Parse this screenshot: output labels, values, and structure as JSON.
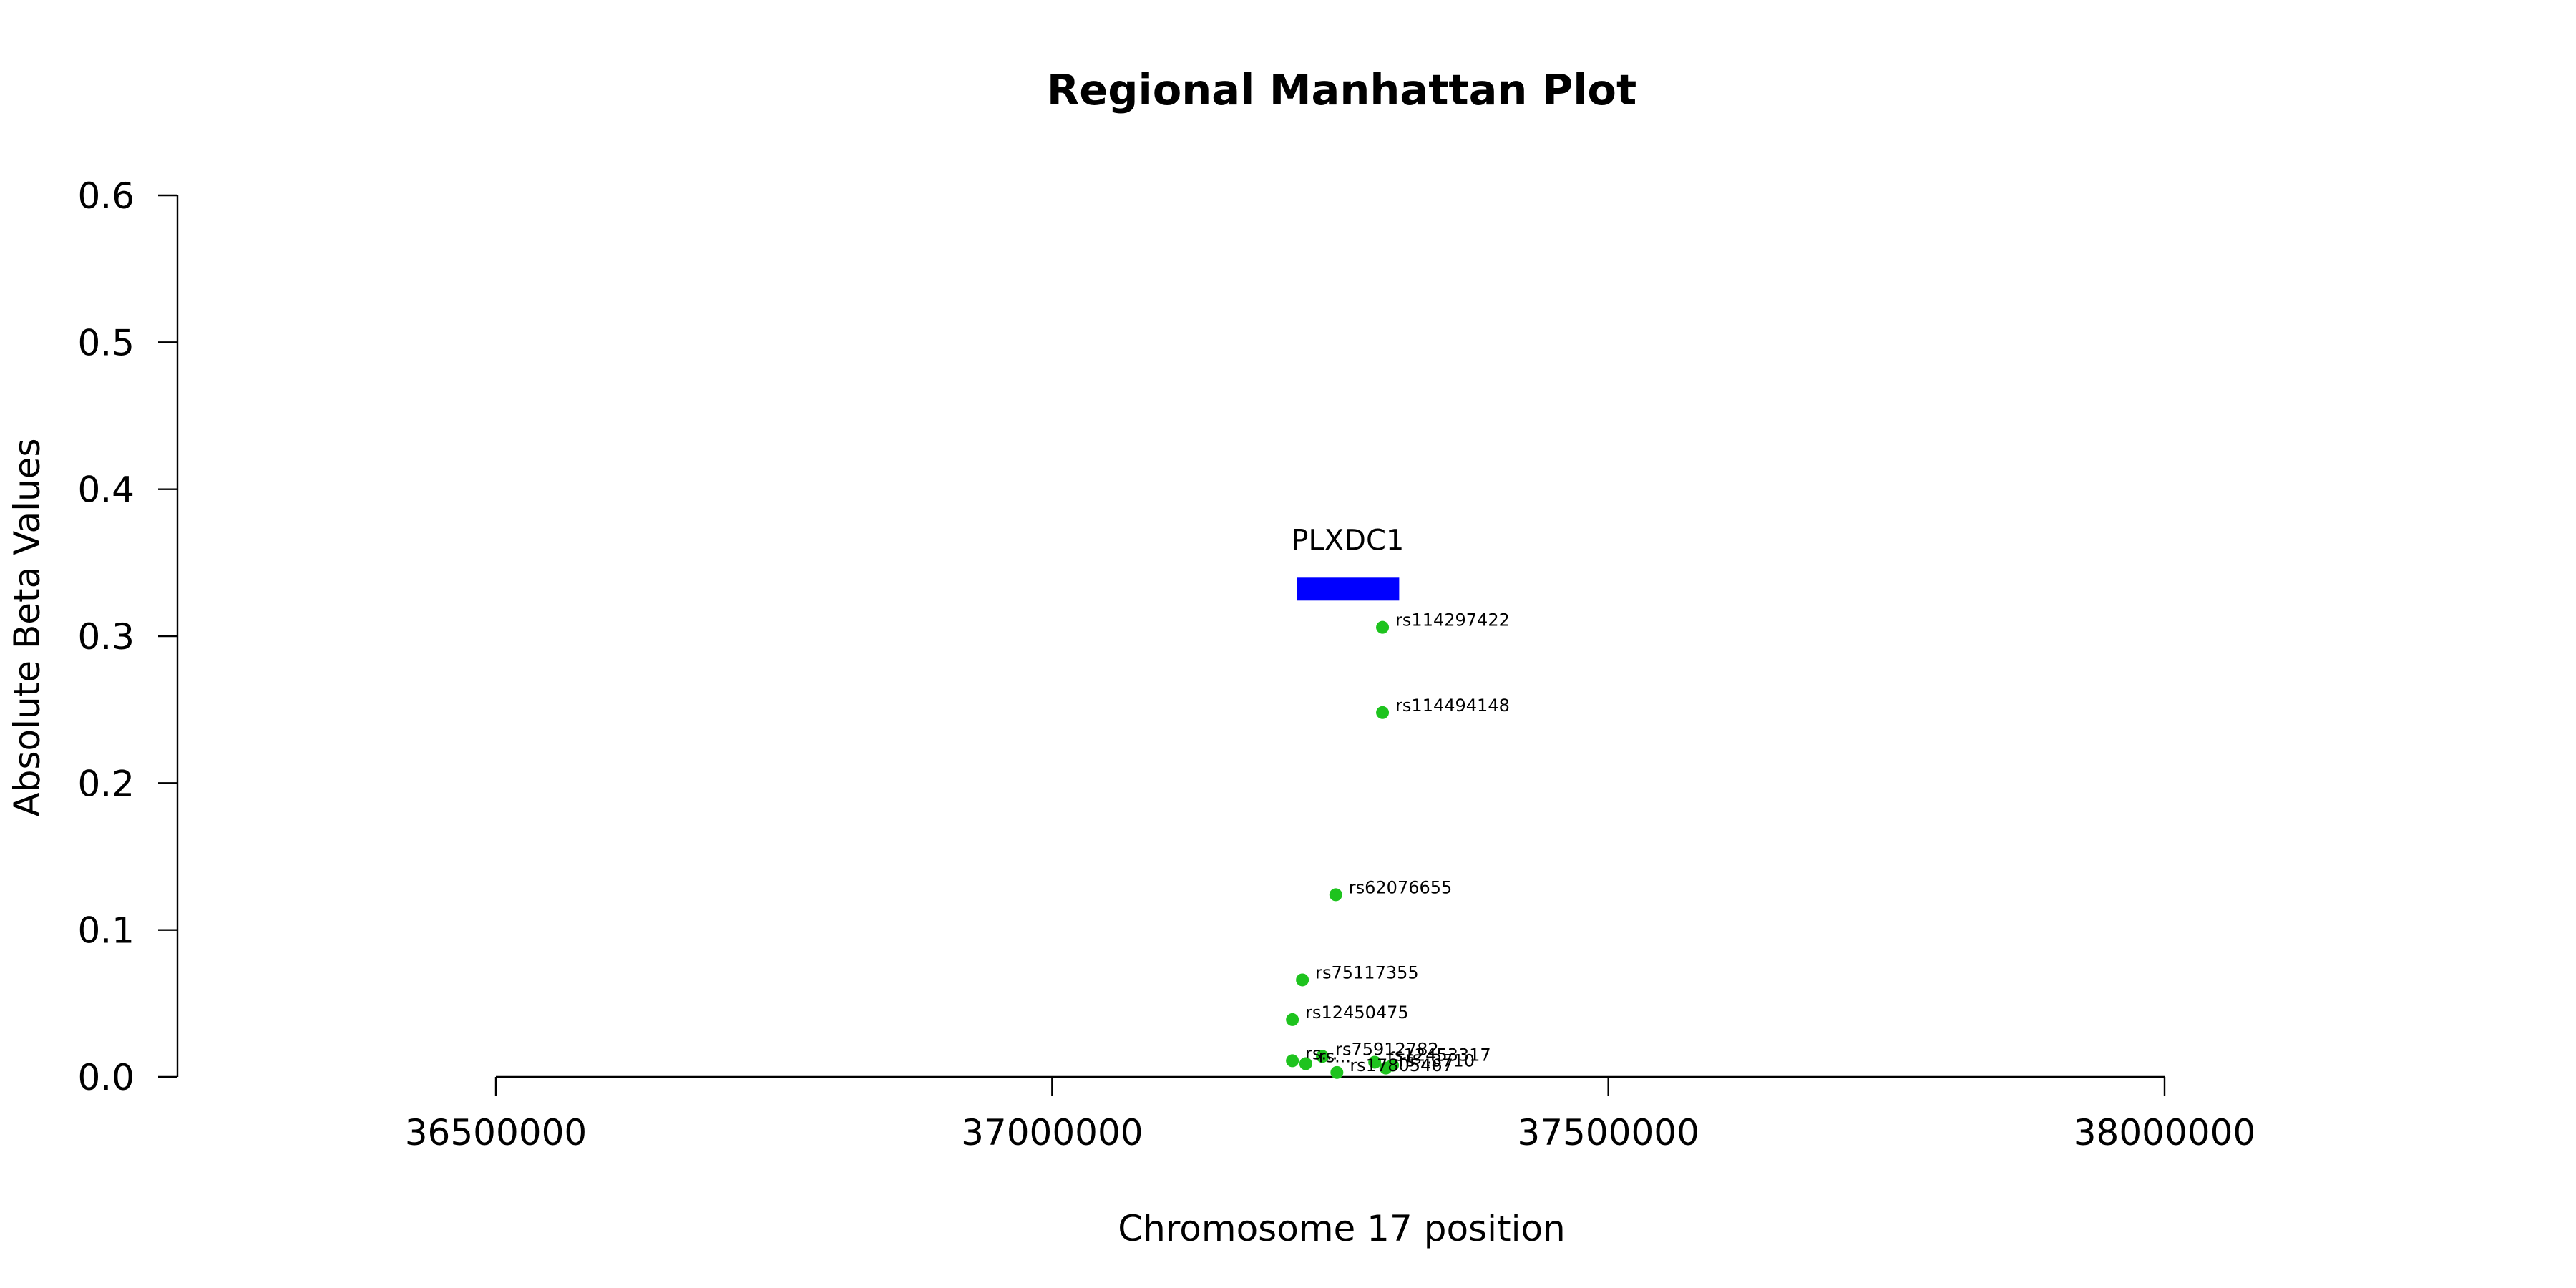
{
  "chart_data": {
    "type": "scatter",
    "title": "Regional Manhattan Plot",
    "xlabel": "Chromosome 17 position",
    "ylabel": "Absolute Beta Values",
    "xlim": [
      36500000,
      38000000
    ],
    "ylim": [
      0,
      0.6
    ],
    "xticks": [
      36500000,
      37000000,
      37500000,
      38000000
    ],
    "xtick_labels": [
      "36500000",
      "37000000",
      "37500000",
      "38000000"
    ],
    "yticks": [
      0.0,
      0.1,
      0.2,
      0.3,
      0.4,
      0.5,
      0.6
    ],
    "ytick_labels": [
      "0.0",
      "0.1",
      "0.2",
      "0.3",
      "0.4",
      "0.5",
      "0.6"
    ],
    "grid": false,
    "point_color": "#1ec31e",
    "gene_color": "#0000ff",
    "genes": [
      {
        "name": "PLXDC1",
        "start": 37220000,
        "end": 37312000,
        "y": 0.332
      }
    ],
    "points": [
      {
        "label": "rs114297422",
        "x": 37297000,
        "y": 0.306
      },
      {
        "label": "rs114494148",
        "x": 37297000,
        "y": 0.248
      },
      {
        "label": "rs62076655",
        "x": 37255000,
        "y": 0.124
      },
      {
        "label": "rs75117355",
        "x": 37225000,
        "y": 0.066
      },
      {
        "label": "rs12450475",
        "x": 37216000,
        "y": 0.039
      },
      {
        "label": "rs75912782",
        "x": 37243000,
        "y": 0.014
      },
      {
        "label": "rs...",
        "x": 37216000,
        "y": 0.011
      },
      {
        "label": "rs12453317",
        "x": 37290000,
        "y": 0.01
      },
      {
        "label": "rs...",
        "x": 37228000,
        "y": 0.009
      },
      {
        "label": "rs...",
        "x": 37306000,
        "y": 0.008
      },
      {
        "label": "rs...3710",
        "x": 37300000,
        "y": 0.006
      },
      {
        "label": "rs17805467",
        "x": 37256000,
        "y": 0.003
      }
    ]
  }
}
